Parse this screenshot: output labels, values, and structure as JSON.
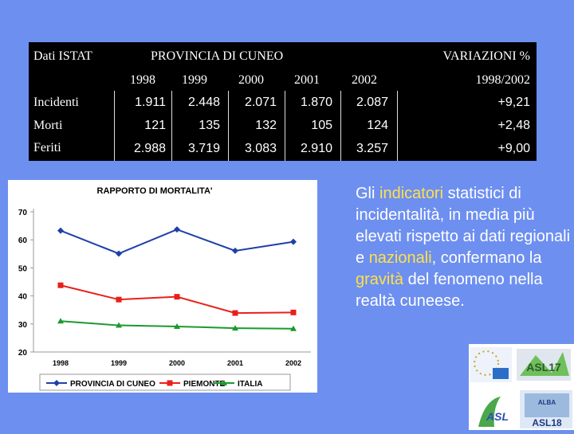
{
  "table": {
    "source_label": "Dati ISTAT",
    "region_title": "PROVINCIA DI CUNEO",
    "variation_title": "VARIAZIONI %",
    "years": [
      "1998",
      "1999",
      "2000",
      "2001",
      "2002"
    ],
    "variation_period": "1998/2002",
    "rows": [
      {
        "label": "Incidenti",
        "values": [
          "1.911",
          "2.448",
          "2.071",
          "1.870",
          "2.087"
        ],
        "variation": "+9,21"
      },
      {
        "label": "Morti",
        "values": [
          "121",
          "135",
          "132",
          "105",
          "124"
        ],
        "variation": "+2,48"
      },
      {
        "label": "Feriti",
        "values": [
          "2.988",
          "3.719",
          "3.083",
          "2.910",
          "3.257"
        ],
        "variation": "+9,00"
      }
    ]
  },
  "paragraph": {
    "part1": "Gli ",
    "highlight1": "indicatori",
    "part2": " statistici di incidentalità, in media più elevati rispetto ai dati regionali e ",
    "highlight2": "nazionali",
    "part3": ", confermano la ",
    "highlight3": "gravità",
    "part4": " del fenomeno nella realtà cuneese."
  },
  "colors": {
    "background": "#6d8ff0",
    "highlight": "#ffe04a",
    "series_cuneo": "#1f3fa8",
    "series_piemonte": "#e8201a",
    "series_italia": "#1b9a2e"
  },
  "logos": {
    "asl17": "ASL17",
    "asl18": "ASL18",
    "alba": "ALBA",
    "asl": "ASL"
  },
  "chart_data": {
    "type": "line",
    "title": "RAPPORTO DI MORTALITA'",
    "categories": [
      "1998",
      "1999",
      "2000",
      "2001",
      "2002"
    ],
    "ylim": [
      20,
      70
    ],
    "yticks": [
      20,
      30,
      40,
      50,
      60,
      70
    ],
    "grid": false,
    "legend_placement": "bottom",
    "series": [
      {
        "name": "PROVINCIA DI CUNEO",
        "values": [
          63.3,
          55.1,
          63.7,
          56.1,
          59.3
        ],
        "color": "#1f3fa8",
        "marker": "diamond"
      },
      {
        "name": "PIEMONTE",
        "values": [
          43.8,
          38.7,
          39.7,
          33.9,
          34.1
        ],
        "color": "#e8201a",
        "marker": "square"
      },
      {
        "name": "ITALIA",
        "values": [
          31.0,
          29.5,
          29.1,
          28.5,
          28.3
        ],
        "color": "#1b9a2e",
        "marker": "triangle"
      }
    ]
  }
}
